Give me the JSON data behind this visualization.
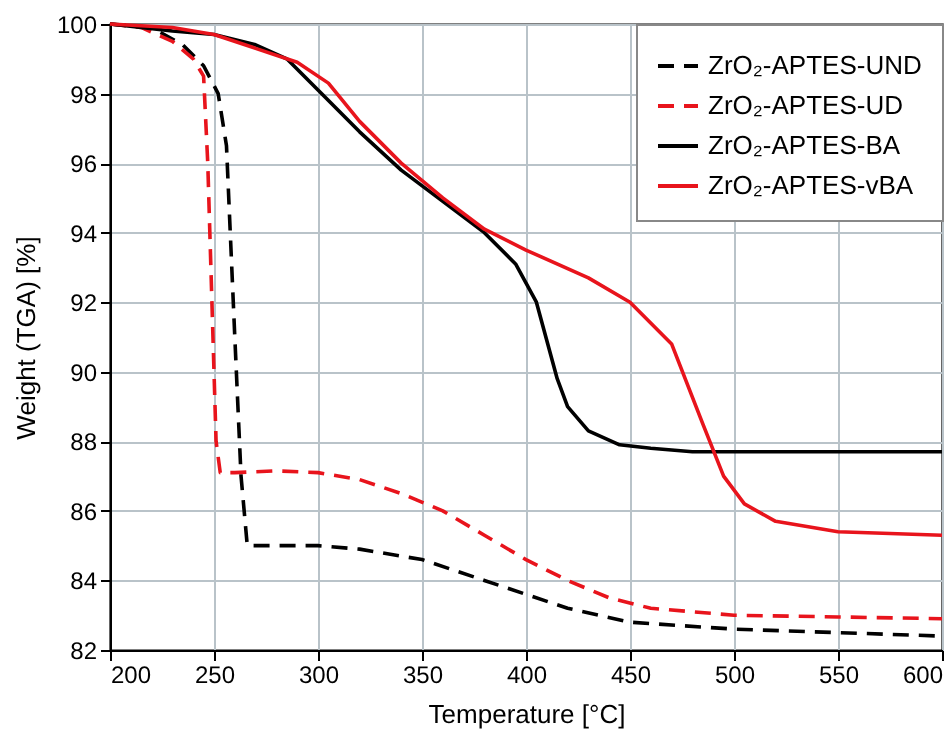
{
  "chart_data": {
    "type": "line",
    "xlabel": "Temperature [°C]",
    "ylabel": "Weight (TGA) [%]",
    "xlim": [
      200,
      600
    ],
    "xticks": [
      200,
      250,
      300,
      350,
      400,
      450,
      500,
      550,
      600
    ],
    "ylim": [
      82,
      100
    ],
    "yticks": [
      82,
      84,
      86,
      88,
      90,
      92,
      94,
      96,
      98,
      100
    ],
    "grid": true,
    "legend": "top right",
    "marker": "none",
    "series": [
      {
        "name": "ZrO₂-APTES-UND",
        "color": "#000000",
        "line_style": "dashed",
        "x": [
          200,
          220,
          235,
          245,
          252,
          256,
          260,
          263,
          266,
          280,
          300,
          320,
          350,
          380,
          400,
          420,
          450,
          500,
          550,
          600
        ],
        "values": [
          100,
          99.9,
          99.4,
          98.8,
          98,
          96.5,
          91,
          87,
          85,
          85,
          85,
          84.9,
          84.6,
          84,
          83.6,
          83.2,
          82.8,
          82.6,
          82.5,
          82.4
        ]
      },
      {
        "name": "ZrO₂-APTES-UD",
        "color": "#e8141c",
        "line_style": "dashed",
        "x": [
          200,
          215,
          230,
          240,
          245,
          247,
          249,
          251,
          253,
          260,
          280,
          300,
          320,
          340,
          360,
          380,
          400,
          420,
          440,
          460,
          500,
          550,
          600
        ],
        "values": [
          100,
          99.9,
          99.5,
          99,
          98.5,
          96,
          92,
          88,
          87.1,
          87.1,
          87.15,
          87.1,
          86.9,
          86.5,
          86,
          85.3,
          84.6,
          84,
          83.5,
          83.2,
          83,
          82.95,
          82.9
        ]
      },
      {
        "name": "ZrO₂-APTES-BA",
        "color": "#000000",
        "line_style": "solid",
        "x": [
          200,
          230,
          250,
          270,
          285,
          300,
          320,
          340,
          360,
          380,
          395,
          405,
          415,
          420,
          430,
          445,
          460,
          480,
          600
        ],
        "values": [
          100,
          99.8,
          99.7,
          99.4,
          99,
          98.1,
          96.9,
          95.8,
          94.9,
          94,
          93.1,
          92,
          89.8,
          89,
          88.3,
          87.9,
          87.8,
          87.7,
          87.7
        ]
      },
      {
        "name": "ZrO₂-APTES-vBA",
        "color": "#e8141c",
        "line_style": "solid",
        "x": [
          200,
          230,
          250,
          270,
          290,
          305,
          320,
          340,
          360,
          380,
          400,
          430,
          450,
          470,
          485,
          495,
          505,
          520,
          550,
          600
        ],
        "values": [
          100,
          99.9,
          99.7,
          99.3,
          98.9,
          98.3,
          97.2,
          96,
          95,
          94.1,
          93.5,
          92.7,
          92,
          90.8,
          88.5,
          87,
          86.2,
          85.7,
          85.4,
          85.3
        ]
      }
    ]
  }
}
